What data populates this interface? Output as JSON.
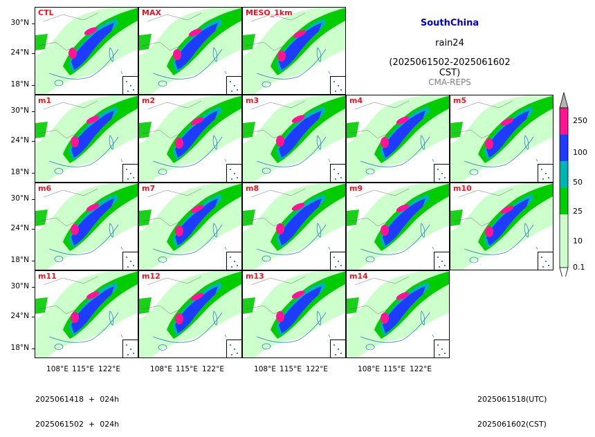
{
  "title": {
    "region": "SouthChina",
    "variable": "rain24",
    "period": "(2025061502-2025061602 CST)",
    "system": "CMA-REPS"
  },
  "panels": [
    {
      "label": "CTL",
      "row": 0,
      "col": 0
    },
    {
      "label": "MAX",
      "row": 0,
      "col": 1
    },
    {
      "label": "MESO_1km",
      "row": 0,
      "col": 2
    },
    {
      "label": "m1",
      "row": 1,
      "col": 0
    },
    {
      "label": "m2",
      "row": 1,
      "col": 1
    },
    {
      "label": "m3",
      "row": 1,
      "col": 2
    },
    {
      "label": "m4",
      "row": 1,
      "col": 3
    },
    {
      "label": "m5",
      "row": 1,
      "col": 4
    },
    {
      "label": "m6",
      "row": 2,
      "col": 0
    },
    {
      "label": "m7",
      "row": 2,
      "col": 1
    },
    {
      "label": "m8",
      "row": 2,
      "col": 2
    },
    {
      "label": "m9",
      "row": 2,
      "col": 3
    },
    {
      "label": "m10",
      "row": 2,
      "col": 4
    },
    {
      "label": "m11",
      "row": 3,
      "col": 0
    },
    {
      "label": "m12",
      "row": 3,
      "col": 1
    },
    {
      "label": "m13",
      "row": 3,
      "col": 2
    },
    {
      "label": "m14",
      "row": 3,
      "col": 3
    }
  ],
  "axes": {
    "lat_ticks": [
      "30°N",
      "24°N",
      "18°N"
    ],
    "lon_ticks": [
      "108°E",
      "115°E",
      "122°E"
    ]
  },
  "colorbar": {
    "levels": [
      "0.1",
      "10",
      "25",
      "50",
      "100",
      "250"
    ],
    "colors": [
      "#ccffcc",
      "#00cc00",
      "#00b4b4",
      "#1e3cff",
      "#ff1493",
      "#b4b4b4"
    ],
    "extend": "both"
  },
  "footer": {
    "left_line1": "2025061418  +  024h",
    "left_line2": "2025061502  +  024h",
    "right_line1": "2025061518(UTC)",
    "right_line2": "2025061602(CST)"
  },
  "colors": {
    "panel_label": "#e8141e",
    "region_title": "#0000cc",
    "system_label": "#808080",
    "coast": "#3a7ec9"
  }
}
